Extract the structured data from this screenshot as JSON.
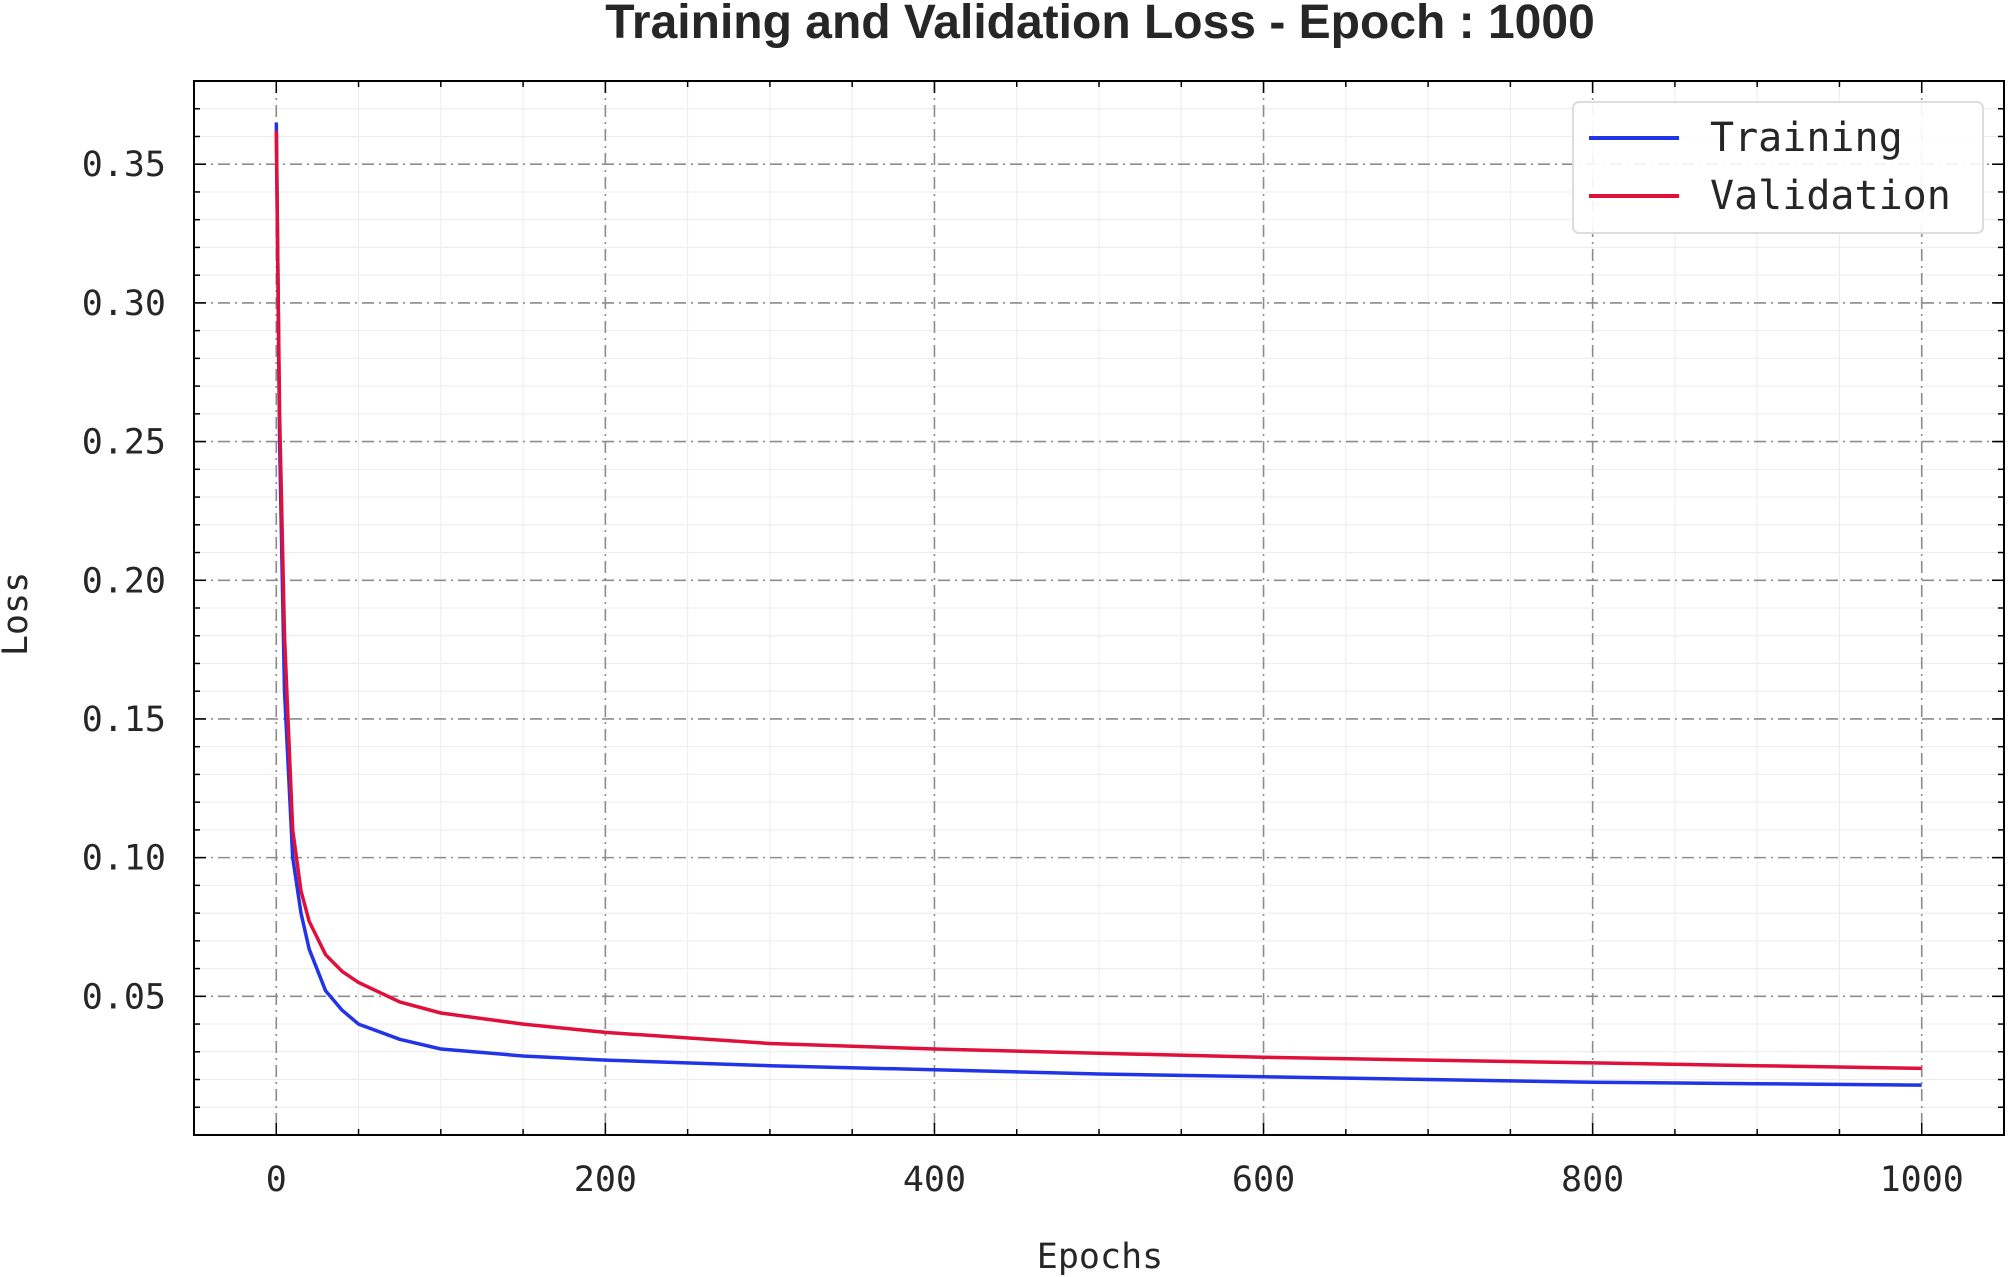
{
  "chart_data": {
    "type": "line",
    "title": "Training and Validation Loss - Epoch : 1000",
    "xlabel": "Epochs",
    "ylabel": "Loss",
    "xlim": [
      -50,
      1050
    ],
    "ylim": [
      0.0,
      0.38
    ],
    "x_ticks": [
      0,
      200,
      400,
      600,
      800,
      1000
    ],
    "x_tick_labels": [
      "0",
      "200",
      "400",
      "600",
      "800",
      "1000"
    ],
    "y_ticks": [
      0.05,
      0.1,
      0.15,
      0.2,
      0.25,
      0.3,
      0.35
    ],
    "y_tick_labels": [
      "0.05",
      "0.10",
      "0.15",
      "0.20",
      "0.25",
      "0.30",
      "0.35"
    ],
    "grid": true,
    "legend_position": "top-right",
    "series": [
      {
        "name": "Training",
        "color": "#2134e8",
        "x": [
          0,
          2,
          5,
          10,
          15,
          20,
          30,
          40,
          50,
          75,
          100,
          150,
          200,
          300,
          400,
          500,
          600,
          700,
          800,
          900,
          1000
        ],
        "y": [
          0.365,
          0.25,
          0.16,
          0.1,
          0.08,
          0.067,
          0.052,
          0.045,
          0.04,
          0.0345,
          0.031,
          0.0285,
          0.027,
          0.025,
          0.0235,
          0.022,
          0.021,
          0.02,
          0.019,
          0.0185,
          0.018
        ]
      },
      {
        "name": "Validation",
        "color": "#e0103a",
        "x": [
          0,
          2,
          5,
          10,
          15,
          20,
          30,
          40,
          50,
          75,
          100,
          150,
          200,
          300,
          400,
          500,
          600,
          700,
          800,
          900,
          1000
        ],
        "y": [
          0.362,
          0.26,
          0.18,
          0.11,
          0.088,
          0.077,
          0.065,
          0.059,
          0.055,
          0.048,
          0.044,
          0.04,
          0.037,
          0.033,
          0.031,
          0.0295,
          0.028,
          0.027,
          0.026,
          0.025,
          0.024
        ]
      }
    ]
  }
}
